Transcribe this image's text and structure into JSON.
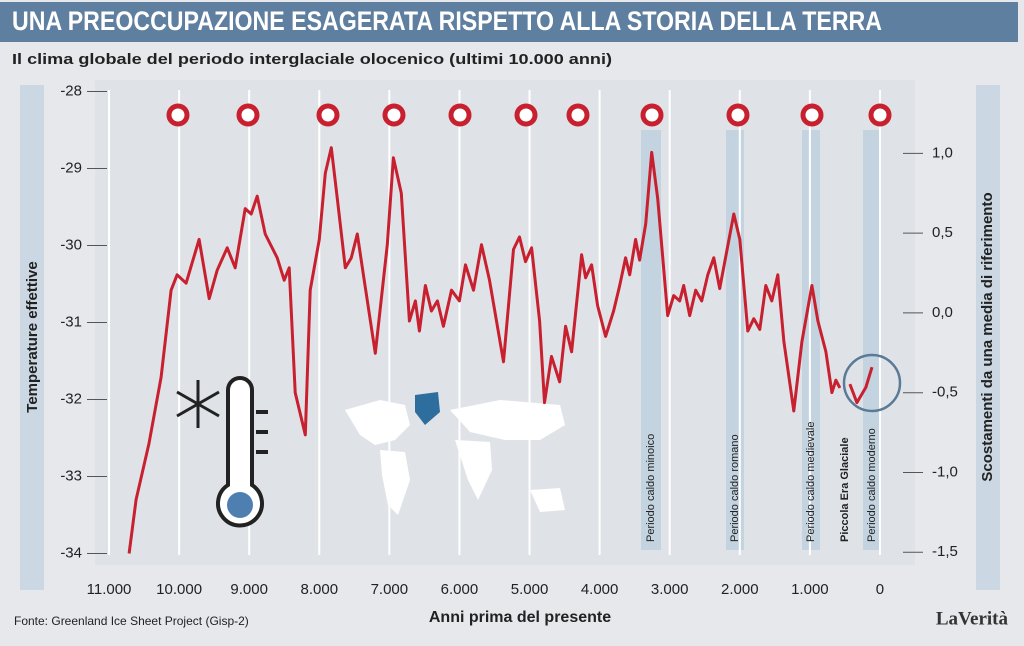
{
  "chart_data": {
    "type": "line",
    "title": "UNA PREOCCUPAZIONE ESAGERATA RISPETTO ALLA STORIA DELLA TERRA",
    "subtitle": "Il clima globale del periodo interglaciale olocenico (ultimi 10.000 anni)",
    "y_label": "Temperature effettive",
    "y2_label": "Scostamenti da una media di riferimento",
    "x_label": "Anni prima del presente",
    "source": "Fonte: Greenland Ice Sheet Project (Gisp-2)",
    "logo": "LaVerità",
    "annotations": [
      "Periodo caldo minoico",
      "Periodo caldo romano",
      "Periodo caldo medievale",
      "Piccola Era Glaciale",
      "Periodo caldo moderno"
    ],
    "color": "#c8202f",
    "grid": true,
    "xlim": [
      11200,
      -500
    ],
    "xticks": [
      {
        "value": 11000,
        "label": "11.000"
      },
      {
        "value": 10000,
        "label": "10.000"
      },
      {
        "value": 9000,
        "label": "9.000"
      },
      {
        "value": 8000,
        "label": "8.000"
      },
      {
        "value": 7000,
        "label": "7.000"
      },
      {
        "value": 6000,
        "label": "6.000"
      },
      {
        "value": 5000,
        "label": "5.000"
      },
      {
        "value": 4000,
        "label": "4.000"
      },
      {
        "value": 3000,
        "label": "3.000"
      },
      {
        "value": 2000,
        "label": "2.000"
      },
      {
        "value": 1000,
        "label": "1.000"
      },
      0
    ],
    "ylim": [
      -34.15,
      -27.85
    ],
    "yticks": [
      -34,
      -33,
      -32,
      -31,
      -30,
      -29,
      -28
    ],
    "y2lim": [
      -1.58,
      1.46
    ],
    "y2ticks": [
      {
        "value": 1,
        "label": "1,0"
      },
      {
        "value": 0.5,
        "label": "0,5"
      },
      {
        "value": 0,
        "label": "0,0"
      },
      {
        "value": -0.5,
        "label": "-0,5"
      },
      {
        "value": -1,
        "label": "-1,0"
      },
      {
        "value": -1.5,
        "label": "-1,5"
      }
    ],
    "x": [
      10714,
      10614,
      10429,
      10257,
      10114,
      10029,
      9900,
      9714,
      9571,
      9457,
      9314,
      9200,
      9057,
      8971,
      8886,
      8771,
      8600,
      8500,
      8429,
      8343,
      8200,
      8129,
      8000,
      7914,
      7829,
      7743,
      7629,
      7543,
      7457,
      7371,
      7200,
      7029,
      6943,
      6829,
      6714,
      6629,
      6571,
      6486,
      6400,
      6314,
      6229,
      6114,
      6000,
      5914,
      5800,
      5686,
      5571,
      5371,
      5229,
      5143,
      5057,
      4971,
      4857,
      4786,
      4686,
      4571,
      4486,
      4400,
      4257,
      4200,
      4114,
      4029,
      3914,
      3800,
      3714,
      3629,
      3571,
      3486,
      3429,
      3343,
      3257,
      3171,
      3029,
      2943,
      2857,
      2800,
      2714,
      2629,
      2543,
      2457,
      2371,
      2286,
      2086,
      2000,
      1886,
      1800,
      1714,
      1629,
      1543,
      1457,
      1371,
      1229,
      1114,
      971,
      886,
      771,
      686,
      629,
      571,
      500,
      429,
      329,
      200,
      114
    ],
    "values": [
      -34.0,
      -33.3,
      -32.57,
      -31.71,
      -30.58,
      -30.38,
      -30.49,
      -29.92,
      -30.69,
      -30.32,
      -30.03,
      -30.29,
      -29.52,
      -29.59,
      -29.36,
      -29.85,
      -30.16,
      -30.45,
      -30.29,
      -31.91,
      -32.46,
      -30.58,
      -29.92,
      -29.06,
      -28.73,
      -29.39,
      -30.29,
      -30.16,
      -29.85,
      -30.38,
      -31.4,
      -29.99,
      -28.86,
      -29.32,
      -30.98,
      -30.72,
      -31.11,
      -30.52,
      -30.85,
      -30.72,
      -31.05,
      -30.58,
      -30.72,
      -30.25,
      -30.58,
      -29.99,
      -30.45,
      -31.51,
      -30.05,
      -29.89,
      -30.21,
      -30.03,
      -30.98,
      -32.04,
      -31.44,
      -31.77,
      -31.05,
      -31.38,
      -30.12,
      -30.42,
      -30.25,
      -30.78,
      -31.18,
      -30.85,
      -30.52,
      -30.16,
      -30.38,
      -29.92,
      -30.19,
      -29.72,
      -28.79,
      -29.39,
      -30.91,
      -30.65,
      -30.72,
      -30.52,
      -30.91,
      -30.58,
      -30.72,
      -30.38,
      -30.16,
      -30.56,
      -29.59,
      -29.92,
      -31.11,
      -30.95,
      -31.09,
      -30.52,
      -30.72,
      -30.38,
      -31.25,
      -32.15,
      -31.25,
      -30.52,
      -30.98,
      -31.38,
      -31.91,
      -31.75,
      -31.85,
      null,
      -31.8,
      -32.04,
      -31.84,
      -31.58
    ]
  }
}
